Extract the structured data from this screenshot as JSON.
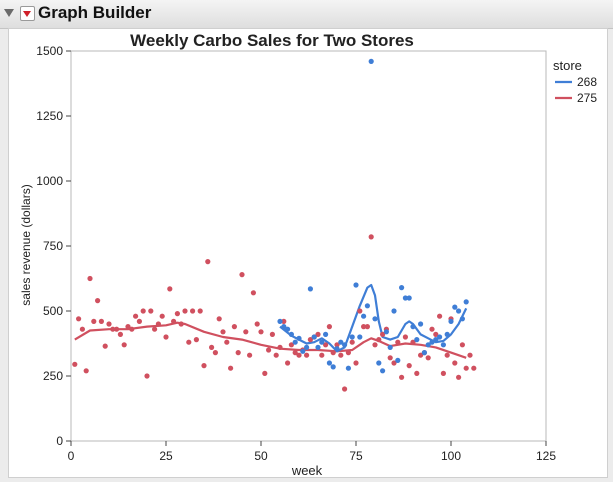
{
  "window": {
    "title": "Graph Builder"
  },
  "chart_data": {
    "type": "scatter",
    "title": "Weekly Carbo Sales for Two Stores",
    "xlabel": "week",
    "ylabel": "sales revenue (dollars)",
    "xlim": [
      0,
      125
    ],
    "ylim": [
      0,
      1500
    ],
    "xticks": [
      0,
      25,
      50,
      75,
      100,
      125
    ],
    "yticks": [
      0,
      250,
      500,
      750,
      1000,
      1250,
      1500
    ],
    "grid": false,
    "legend": {
      "title": "store",
      "placement": "right"
    },
    "series": [
      {
        "name": "268",
        "color": "#3f7ed6",
        "points": [
          [
            55,
            460
          ],
          [
            56,
            440
          ],
          [
            57,
            430
          ],
          [
            58,
            410
          ],
          [
            59,
            380
          ],
          [
            60,
            395
          ],
          [
            61,
            345
          ],
          [
            62,
            360
          ],
          [
            63,
            585
          ],
          [
            64,
            400
          ],
          [
            65,
            360
          ],
          [
            66,
            380
          ],
          [
            67,
            410
          ],
          [
            68,
            300
          ],
          [
            69,
            285
          ],
          [
            70,
            355
          ],
          [
            71,
            380
          ],
          [
            72,
            370
          ],
          [
            73,
            280
          ],
          [
            74,
            400
          ],
          [
            75,
            600
          ],
          [
            76,
            400
          ],
          [
            77,
            480
          ],
          [
            78,
            520
          ],
          [
            79,
            1460
          ],
          [
            80,
            470
          ],
          [
            81,
            300
          ],
          [
            82,
            270
          ],
          [
            83,
            420
          ],
          [
            84,
            360
          ],
          [
            85,
            500
          ],
          [
            86,
            310
          ],
          [
            87,
            590
          ],
          [
            88,
            550
          ],
          [
            89,
            550
          ],
          [
            90,
            440
          ],
          [
            91,
            390
          ],
          [
            92,
            450
          ],
          [
            93,
            340
          ],
          [
            94,
            370
          ],
          [
            95,
            380
          ],
          [
            96,
            390
          ],
          [
            97,
            400
          ],
          [
            98,
            370
          ],
          [
            99,
            410
          ],
          [
            100,
            460
          ],
          [
            101,
            515
          ],
          [
            102,
            500
          ],
          [
            103,
            470
          ],
          [
            104,
            535
          ]
        ],
        "smooth": [
          [
            55,
            440
          ],
          [
            58,
            405
          ],
          [
            60,
            390
          ],
          [
            62,
            375
          ],
          [
            64,
            380
          ],
          [
            66,
            395
          ],
          [
            68,
            375
          ],
          [
            70,
            345
          ],
          [
            72,
            360
          ],
          [
            74,
            440
          ],
          [
            76,
            520
          ],
          [
            78,
            590
          ],
          [
            79,
            600
          ],
          [
            80,
            560
          ],
          [
            81,
            460
          ],
          [
            82,
            400
          ],
          [
            84,
            390
          ],
          [
            86,
            400
          ],
          [
            88,
            450
          ],
          [
            89,
            460
          ],
          [
            90,
            450
          ],
          [
            92,
            410
          ],
          [
            94,
            395
          ],
          [
            96,
            380
          ],
          [
            98,
            385
          ],
          [
            100,
            410
          ],
          [
            102,
            450
          ],
          [
            104,
            510
          ]
        ]
      },
      {
        "name": "275",
        "color": "#d0505f",
        "points": [
          [
            1,
            295
          ],
          [
            2,
            470
          ],
          [
            3,
            430
          ],
          [
            4,
            270
          ],
          [
            5,
            625
          ],
          [
            6,
            460
          ],
          [
            7,
            540
          ],
          [
            8,
            460
          ],
          [
            9,
            365
          ],
          [
            10,
            450
          ],
          [
            11,
            430
          ],
          [
            12,
            430
          ],
          [
            13,
            410
          ],
          [
            14,
            370
          ],
          [
            15,
            440
          ],
          [
            16,
            430
          ],
          [
            17,
            480
          ],
          [
            18,
            460
          ],
          [
            19,
            500
          ],
          [
            20,
            250
          ],
          [
            21,
            500
          ],
          [
            22,
            430
          ],
          [
            23,
            450
          ],
          [
            24,
            480
          ],
          [
            25,
            400
          ],
          [
            26,
            585
          ],
          [
            27,
            460
          ],
          [
            28,
            490
          ],
          [
            29,
            450
          ],
          [
            30,
            500
          ],
          [
            31,
            380
          ],
          [
            32,
            500
          ],
          [
            33,
            390
          ],
          [
            34,
            500
          ],
          [
            35,
            290
          ],
          [
            36,
            690
          ],
          [
            37,
            360
          ],
          [
            38,
            340
          ],
          [
            39,
            470
          ],
          [
            40,
            420
          ],
          [
            41,
            380
          ],
          [
            42,
            280
          ],
          [
            43,
            440
          ],
          [
            44,
            340
          ],
          [
            45,
            640
          ],
          [
            46,
            420
          ],
          [
            47,
            330
          ],
          [
            48,
            570
          ],
          [
            49,
            450
          ],
          [
            50,
            420
          ],
          [
            51,
            260
          ],
          [
            52,
            350
          ],
          [
            53,
            410
          ],
          [
            54,
            330
          ],
          [
            55,
            360
          ],
          [
            56,
            460
          ],
          [
            57,
            300
          ],
          [
            58,
            370
          ],
          [
            59,
            340
          ],
          [
            60,
            330
          ],
          [
            61,
            350
          ],
          [
            62,
            330
          ],
          [
            63,
            390
          ],
          [
            64,
            400
          ],
          [
            65,
            410
          ],
          [
            66,
            330
          ],
          [
            67,
            370
          ],
          [
            68,
            440
          ],
          [
            69,
            340
          ],
          [
            70,
            370
          ],
          [
            71,
            330
          ],
          [
            72,
            200
          ],
          [
            73,
            340
          ],
          [
            74,
            380
          ],
          [
            75,
            300
          ],
          [
            76,
            500
          ],
          [
            77,
            440
          ],
          [
            78,
            440
          ],
          [
            79,
            785
          ],
          [
            80,
            370
          ],
          [
            81,
            390
          ],
          [
            82,
            410
          ],
          [
            83,
            430
          ],
          [
            84,
            320
          ],
          [
            85,
            300
          ],
          [
            86,
            380
          ],
          [
            87,
            245
          ],
          [
            88,
            400
          ],
          [
            89,
            290
          ],
          [
            90,
            380
          ],
          [
            91,
            260
          ],
          [
            92,
            330
          ],
          [
            93,
            340
          ],
          [
            94,
            320
          ],
          [
            95,
            430
          ],
          [
            96,
            410
          ],
          [
            97,
            480
          ],
          [
            98,
            260
          ],
          [
            99,
            330
          ],
          [
            100,
            470
          ],
          [
            101,
            300
          ],
          [
            102,
            245
          ],
          [
            103,
            370
          ],
          [
            104,
            280
          ],
          [
            105,
            330
          ],
          [
            106,
            280
          ]
        ],
        "smooth": [
          [
            1,
            390
          ],
          [
            5,
            425
          ],
          [
            10,
            430
          ],
          [
            15,
            430
          ],
          [
            20,
            440
          ],
          [
            25,
            445
          ],
          [
            28,
            455
          ],
          [
            30,
            450
          ],
          [
            35,
            420
          ],
          [
            40,
            400
          ],
          [
            45,
            390
          ],
          [
            50,
            370
          ],
          [
            55,
            355
          ],
          [
            60,
            350
          ],
          [
            65,
            350
          ],
          [
            70,
            345
          ],
          [
            74,
            350
          ],
          [
            77,
            380
          ],
          [
            79,
            395
          ],
          [
            81,
            385
          ],
          [
            84,
            365
          ],
          [
            88,
            375
          ],
          [
            92,
            370
          ],
          [
            96,
            360
          ],
          [
            100,
            340
          ],
          [
            104,
            320
          ]
        ]
      }
    ]
  }
}
